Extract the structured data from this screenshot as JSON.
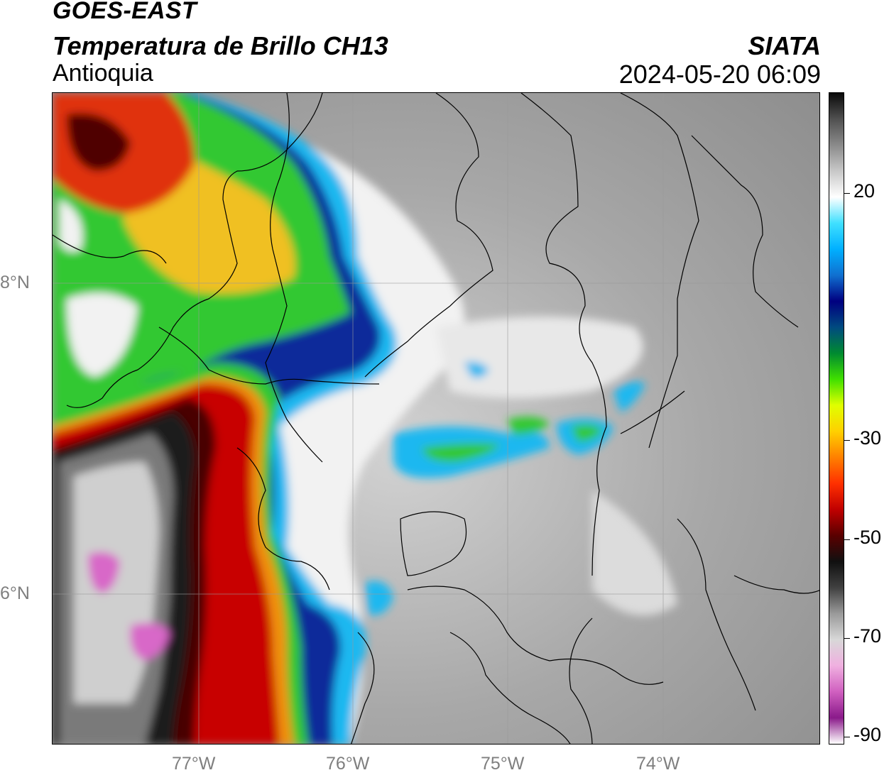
{
  "header": {
    "satellite": "GOES-EAST",
    "product": "Temperatura de Brillo CH13",
    "region": "Antioquia",
    "organization": "SIATA",
    "datetime": "2024-05-20 06:09"
  },
  "axes": {
    "latitude_labels": [
      "8°N",
      "6°N"
    ],
    "longitude_labels": [
      "77°W",
      "76°W",
      "75°W",
      "74°W"
    ]
  },
  "colorbar": {
    "tick_labels": [
      "20",
      "-30",
      "-50",
      "-70",
      "-90"
    ],
    "colors": [
      "#ffffff",
      "#8a1a8a",
      "#d060c0",
      "#f0b0e0",
      "#d8d8d8",
      "#9a9a9a",
      "#404040",
      "#101010",
      "#5a0000",
      "#c00000",
      "#ff3000",
      "#ff8000",
      "#ffd000",
      "#e0ff00",
      "#40e000",
      "#008a30",
      "#004a80",
      "#000080",
      "#1070d0",
      "#00b0ff",
      "#40e0ff",
      "#ffffff",
      "#c8c8c8",
      "#8a8a8a",
      "#505050",
      "#0a0a0a"
    ]
  }
}
